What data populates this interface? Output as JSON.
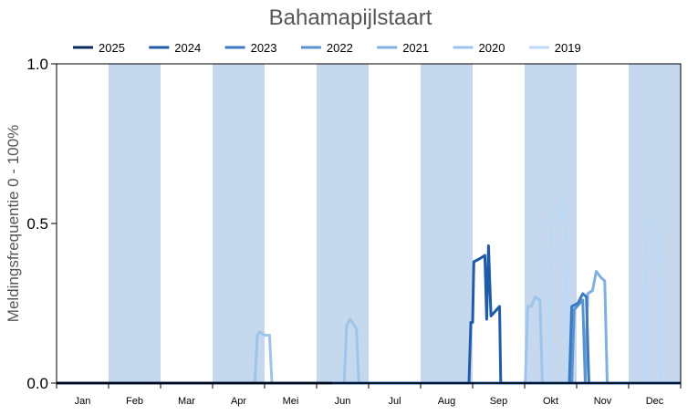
{
  "chart_data": {
    "type": "line",
    "title": "Bahamapijlstaart",
    "xlabel": "",
    "ylabel": "Meldingsfrequentie 0 - 100%",
    "ylim": [
      0,
      1
    ],
    "yticks": [
      "0.0",
      "0.5",
      "1.0"
    ],
    "ytick_values": [
      0,
      0.5,
      1
    ],
    "months": [
      "Jan",
      "Feb",
      "Mar",
      "Apr",
      "Mei",
      "Jun",
      "Jul",
      "Aug",
      "Sep",
      "Okt",
      "Nov",
      "Dec"
    ],
    "x_unit": "week",
    "xlim": [
      1,
      52
    ],
    "shaded_months": [
      "Feb",
      "Apr",
      "Jun",
      "Aug",
      "Okt",
      "Dec"
    ],
    "legend_position": "top",
    "grid": false,
    "colors": {
      "band": "#c6d8ee",
      "axis": "#000000",
      "text": "#555555"
    },
    "series": [
      {
        "name": "2025",
        "color": "#0b2a5a",
        "points": [
          [
            1,
            0
          ],
          [
            23.5,
            0
          ]
        ]
      },
      {
        "name": "2024",
        "color": "#1f5ba6",
        "points": [
          [
            1,
            0
          ],
          [
            34.7,
            0
          ],
          [
            34.85,
            0.19
          ],
          [
            35.0,
            0.19
          ],
          [
            35.1,
            0.38
          ],
          [
            35.6,
            0.39
          ],
          [
            36.0,
            0.4
          ],
          [
            36.15,
            0.2
          ],
          [
            36.3,
            0.43
          ],
          [
            36.5,
            0.21
          ],
          [
            37.2,
            0.24
          ],
          [
            37.3,
            0
          ],
          [
            52,
            0
          ]
        ]
      },
      {
        "name": "2023",
        "color": "#3d7ac0",
        "points": [
          [
            1,
            0
          ],
          [
            42.9,
            0
          ],
          [
            43.1,
            0.24
          ],
          [
            43.6,
            0.25
          ],
          [
            44.0,
            0.28
          ],
          [
            44.3,
            0.27
          ],
          [
            44.5,
            0
          ],
          [
            52,
            0
          ]
        ]
      },
      {
        "name": "2022",
        "color": "#5b93cf",
        "points": [
          [
            1,
            0
          ],
          [
            43.1,
            0
          ],
          [
            43.3,
            0.23
          ],
          [
            44.0,
            0.26
          ],
          [
            44.2,
            0
          ],
          [
            52,
            0
          ]
        ]
      },
      {
        "name": "2021",
        "color": "#7fb0e0",
        "points": [
          [
            1,
            0
          ],
          [
            44.2,
            0
          ],
          [
            44.4,
            0.28
          ],
          [
            44.8,
            0.29
          ],
          [
            45.1,
            0.35
          ],
          [
            45.5,
            0.33
          ],
          [
            45.8,
            0.32
          ],
          [
            46.0,
            0
          ],
          [
            52,
            0
          ]
        ]
      },
      {
        "name": "2020",
        "color": "#9ec4ec",
        "points": [
          [
            1,
            0
          ],
          [
            17.2,
            0
          ],
          [
            17.4,
            0.15
          ],
          [
            17.6,
            0.16
          ],
          [
            18.0,
            0.15
          ],
          [
            18.4,
            0.15
          ],
          [
            18.6,
            0
          ],
          [
            24.5,
            0
          ],
          [
            24.7,
            0.18
          ],
          [
            25.0,
            0.2
          ],
          [
            25.5,
            0.17
          ],
          [
            25.7,
            0
          ],
          [
            39.3,
            0
          ],
          [
            39.5,
            0.24
          ],
          [
            39.8,
            0.24
          ],
          [
            40.1,
            0.27
          ],
          [
            40.5,
            0.26
          ],
          [
            40.7,
            0
          ],
          [
            52,
            0
          ]
        ]
      },
      {
        "name": "2019",
        "color": "#bcdaf6",
        "points": [
          [
            1,
            0
          ],
          [
            41.2,
            0
          ],
          [
            41.4,
            0.52
          ],
          [
            41.8,
            0.55
          ],
          [
            42.2,
            0.52
          ],
          [
            42.5,
            0.6
          ],
          [
            42.8,
            0
          ],
          [
            49.0,
            0
          ],
          [
            49.2,
            0.5
          ],
          [
            49.7,
            0.52
          ],
          [
            50.1,
            0.5
          ],
          [
            50.3,
            0
          ],
          [
            52,
            0
          ]
        ]
      }
    ]
  }
}
